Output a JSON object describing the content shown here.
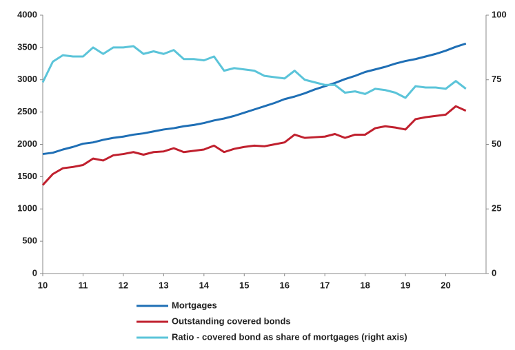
{
  "chart_data": {
    "type": "line",
    "x": [
      10,
      10.25,
      10.5,
      10.75,
      11,
      11.25,
      11.5,
      11.75,
      12,
      12.25,
      12.5,
      12.75,
      13,
      13.25,
      13.5,
      13.75,
      14,
      14.25,
      14.5,
      14.75,
      15,
      15.25,
      15.5,
      15.75,
      16,
      16.25,
      16.5,
      16.75,
      17,
      17.25,
      17.5,
      17.75,
      18,
      18.25,
      18.5,
      18.75,
      19,
      19.25,
      19.5,
      19.75,
      20,
      20.25,
      20.5
    ],
    "series": [
      {
        "name": "Mortgages",
        "color": "#1f6fb5",
        "values": [
          1850,
          1870,
          1920,
          1960,
          2010,
          2030,
          2070,
          2100,
          2120,
          2150,
          2170,
          2200,
          2230,
          2250,
          2280,
          2300,
          2330,
          2370,
          2400,
          2440,
          2490,
          2540,
          2590,
          2640,
          2700,
          2740,
          2790,
          2850,
          2900,
          2950,
          3010,
          3060,
          3120,
          3160,
          3200,
          3250,
          3290,
          3320,
          3360,
          3400,
          3450,
          3510,
          3560
        ]
      },
      {
        "name": "Outstanding covered bonds",
        "color": "#c0202e",
        "values": [
          1370,
          1540,
          1630,
          1650,
          1680,
          1780,
          1750,
          1830,
          1850,
          1880,
          1840,
          1880,
          1890,
          1940,
          1880,
          1900,
          1920,
          1980,
          1880,
          1930,
          1960,
          1980,
          1970,
          2000,
          2030,
          2150,
          2100,
          2110,
          2120,
          2160,
          2100,
          2150,
          2150,
          2250,
          2280,
          2260,
          2230,
          2390,
          2420,
          2440,
          2460,
          2590,
          2520
        ]
      },
      {
        "name": "Ratio - covered bond as share of mortgages (right axis)",
        "color": "#5bc4d9",
        "axis": "y2",
        "values": [
          74,
          82,
          84.5,
          84,
          84,
          87.5,
          85,
          87.5,
          87.5,
          88,
          85,
          86,
          85,
          86.5,
          83,
          83,
          82.5,
          84,
          78.5,
          79.5,
          79,
          78.5,
          76.5,
          76,
          75.5,
          78.5,
          75,
          74,
          73,
          73,
          70,
          70.5,
          69.5,
          71.5,
          71,
          70,
          68,
          72.5,
          72,
          72,
          71.5,
          74.5,
          71.5
        ]
      }
    ],
    "xlim": [
      10,
      21
    ],
    "xticks": [
      10,
      11,
      12,
      13,
      14,
      15,
      16,
      17,
      18,
      19,
      20
    ],
    "ylim": [
      0,
      4000
    ],
    "yticks": [
      0,
      500,
      1000,
      1500,
      2000,
      2500,
      3000,
      3500,
      4000
    ],
    "y2lim": [
      0,
      100
    ],
    "y2ticks": [
      0,
      25,
      50,
      75,
      100
    ],
    "grid": false,
    "legend": "bottom"
  }
}
